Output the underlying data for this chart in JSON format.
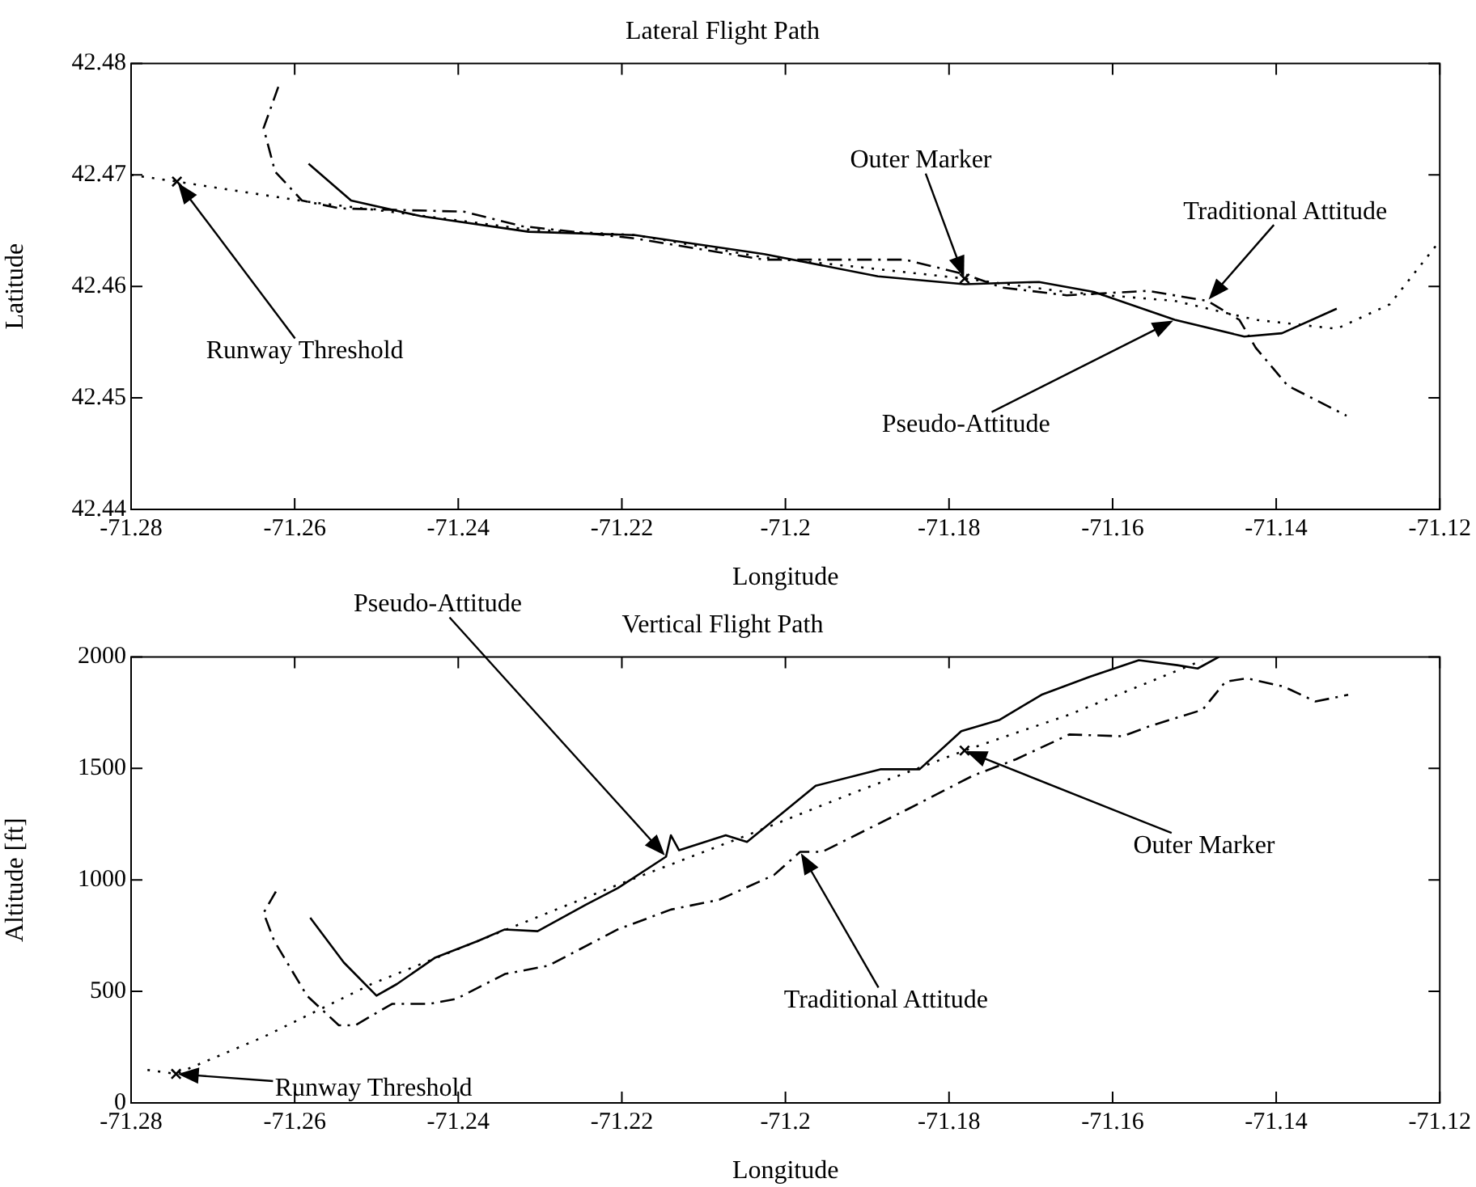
{
  "chart_data": [
    {
      "type": "line",
      "title": "Lateral Flight Path",
      "xlabel": "Longitude",
      "ylabel": "Latitude",
      "xlim": [
        -71.28,
        -71.12
      ],
      "xticks": [
        -71.28,
        -71.26,
        -71.24,
        -71.22,
        -71.2,
        -71.18,
        -71.16,
        -71.14,
        -71.12
      ],
      "ylim": [
        42.44,
        42.48
      ],
      "yticks": [
        42.44,
        42.45,
        42.46,
        42.47,
        42.48
      ],
      "grid": false,
      "legend": false,
      "series": [
        {
          "line_style": "dotted",
          "color": "#000000",
          "marker": "none",
          "x": [
            -71.28,
            -71.2744,
            -71.2585,
            -71.2472,
            -71.2314,
            -71.2184,
            -71.2026,
            -71.1919,
            -71.1781,
            -71.1656,
            -71.1524,
            -71.1425,
            -71.1326,
            -71.1261,
            -71.1202
          ],
          "values": [
            42.47,
            42.4694,
            42.4676,
            42.4666,
            42.4651,
            42.4646,
            42.4626,
            42.4618,
            42.4607,
            42.4595,
            42.4587,
            42.457,
            42.4562,
            42.4584,
            42.4639
          ]
        },
        {
          "line_style": "solid",
          "color": "#000000",
          "marker": "none",
          "x": [
            -71.2583,
            -71.2531,
            -71.2446,
            -71.2314,
            -71.2184,
            -71.2026,
            -71.1887,
            -71.1781,
            -71.169,
            -71.1623,
            -71.1524,
            -71.1439,
            -71.1393,
            -71.1326
          ],
          "values": [
            42.471,
            42.4677,
            42.4663,
            42.4649,
            42.4646,
            42.4629,
            42.4609,
            42.4602,
            42.4604,
            42.4595,
            42.457,
            42.4555,
            42.4558,
            42.458
          ]
        },
        {
          "line_style": "dashed",
          "color": "#000000",
          "marker": "none",
          "x": [
            -71.262,
            -71.2638,
            -71.2624,
            -71.2591,
            -71.2545,
            -71.2393,
            -71.2322,
            -71.2184,
            -71.2026,
            -71.1854,
            -71.1781,
            -71.1735,
            -71.1656,
            -71.1557,
            -71.1484,
            -71.1445,
            -71.1425,
            -71.1386,
            -71.1314
          ],
          "values": [
            42.4779,
            42.4742,
            42.4703,
            42.4677,
            42.467,
            42.4667,
            42.4654,
            42.4643,
            42.4624,
            42.4624,
            42.4611,
            42.4599,
            42.4592,
            42.4596,
            42.4587,
            42.457,
            42.4545,
            42.4511,
            42.4484
          ]
        },
        {
          "type": "scatter",
          "color": "#000000",
          "marker": "cross",
          "x": [
            -71.2744,
            -71.1781
          ],
          "values": [
            42.4694,
            42.4607
          ]
        }
      ],
      "annotations": [
        "Outer Marker",
        "Traditional Attitude",
        "Pseudo-Attitude",
        "Runway Threshold"
      ]
    },
    {
      "type": "line",
      "title": "Vertical Flight Path",
      "xlabel": "Longitude",
      "ylabel": "Altitude [ft]",
      "xlim": [
        -71.28,
        -71.12
      ],
      "xticks": [
        -71.28,
        -71.26,
        -71.24,
        -71.22,
        -71.2,
        -71.18,
        -71.16,
        -71.14,
        -71.12
      ],
      "ylim": [
        0,
        2000
      ],
      "yticks": [
        0,
        500,
        1000,
        1500,
        2000
      ],
      "grid": false,
      "legend": false,
      "series": [
        {
          "line_style": "dotted",
          "color": "#000000",
          "marker": "none",
          "x": [
            -71.278,
            -71.2745,
            -71.2638,
            -71.2506,
            -71.2376,
            -71.2205,
            -71.2047,
            -71.1915,
            -71.1781,
            -71.1653,
            -71.149
          ],
          "values": [
            148,
            130,
            296,
            533,
            726,
            978,
            1200,
            1393,
            1580,
            1741,
            1985
          ]
        },
        {
          "line_style": "solid",
          "color": "#000000",
          "marker": "none",
          "x": [
            -71.2581,
            -71.254,
            -71.25,
            -71.2475,
            -71.2428,
            -71.2376,
            -71.2343,
            -71.2303,
            -71.2244,
            -71.2205,
            -71.2146,
            -71.214,
            -71.213,
            -71.2073,
            -71.2047,
            -71.1963,
            -71.1884,
            -71.1836,
            -71.1785,
            -71.1738,
            -71.1687,
            -71.1628,
            -71.1568,
            -71.1521,
            -71.1496,
            -71.147
          ],
          "values": [
            830,
            630,
            481,
            533,
            652,
            726,
            778,
            770,
            889,
            963,
            1104,
            1200,
            1133,
            1200,
            1170,
            1422,
            1496,
            1496,
            1667,
            1718,
            1830,
            1911,
            1985,
            1963,
            1948,
            2000
          ]
        },
        {
          "line_style": "dashed",
          "color": "#000000",
          "marker": "none",
          "x": [
            -71.2623,
            -71.2638,
            -71.2625,
            -71.2585,
            -71.2546,
            -71.2526,
            -71.2481,
            -71.2435,
            -71.2402,
            -71.2343,
            -71.229,
            -71.2205,
            -71.214,
            -71.2081,
            -71.2014,
            -71.1982,
            -71.1955,
            -71.185,
            -71.1771,
            -71.1718,
            -71.1653,
            -71.1588,
            -71.1555,
            -71.149,
            -71.1462,
            -71.1436,
            -71.1391,
            -71.1352,
            -71.1312
          ],
          "values": [
            948,
            852,
            726,
            481,
            348,
            348,
            444,
            444,
            467,
            578,
            615,
            778,
            867,
            911,
            1022,
            1126,
            1126,
            1318,
            1467,
            1541,
            1652,
            1644,
            1689,
            1763,
            1889,
            1904,
            1867,
            1800,
            1830
          ]
        },
        {
          "type": "scatter",
          "color": "#000000",
          "marker": "cross",
          "x": [
            -71.2745,
            -71.1781
          ],
          "values": [
            130,
            1580
          ]
        }
      ],
      "annotations": [
        "Pseudo-Attitude",
        "Outer Marker",
        "Traditional Attitude",
        "Runway Threshold"
      ]
    }
  ]
}
